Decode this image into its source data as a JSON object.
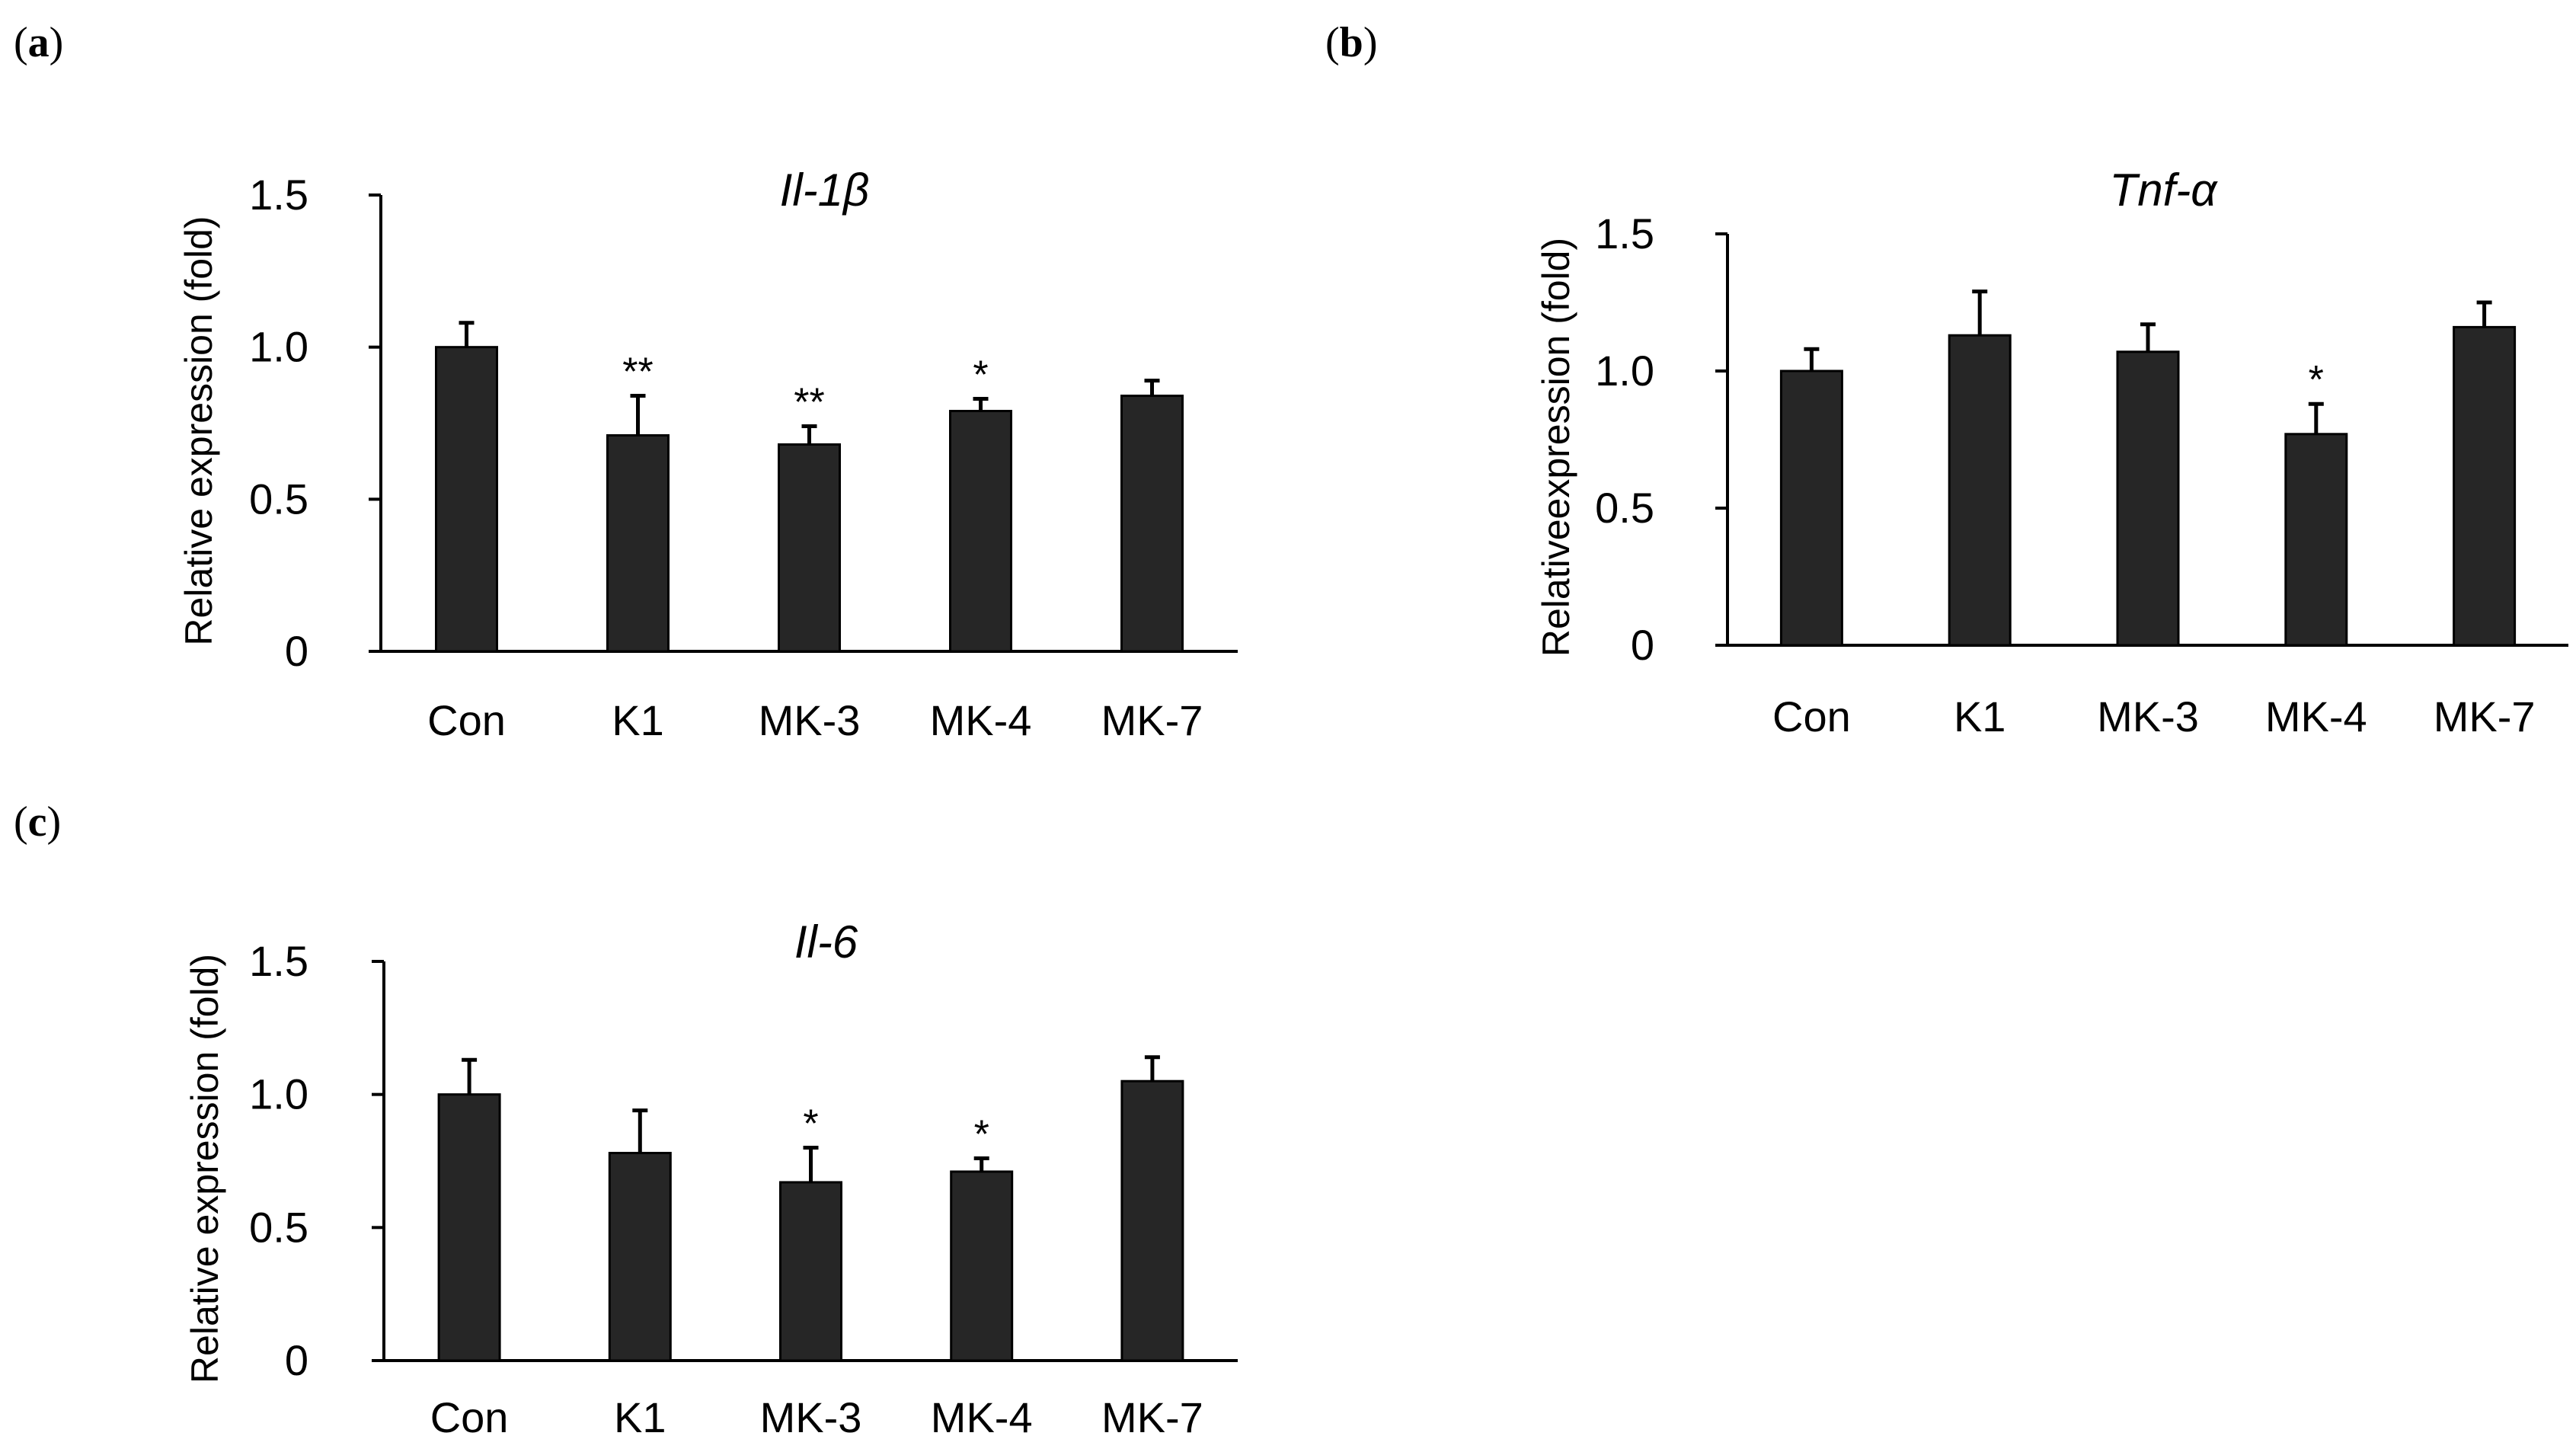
{
  "chart_data": [
    {
      "panel": "a",
      "type": "bar",
      "title": "Il-1β",
      "ylabel": "Relative expression (fold)",
      "xlabel": "",
      "ylim": [
        0,
        1.5
      ],
      "yticks": [
        "0",
        "0.5",
        "1.0",
        "1.5"
      ],
      "ytick_values": [
        0,
        0.5,
        1.0,
        1.5
      ],
      "categories": [
        "Con",
        "K1",
        "MK-3",
        "MK-4",
        "MK-7"
      ],
      "values": [
        1.0,
        0.71,
        0.68,
        0.79,
        0.84
      ],
      "errors": [
        0.08,
        0.13,
        0.06,
        0.04,
        0.05
      ],
      "significance": [
        "",
        "**",
        "**",
        "*",
        ""
      ]
    },
    {
      "panel": "b",
      "type": "bar",
      "title": "Tnf-α",
      "ylabel": "Relativeexpression (fold)",
      "xlabel": "",
      "ylim": [
        0,
        1.5
      ],
      "yticks": [
        "0",
        "0.5",
        "1.0",
        "1.5"
      ],
      "ytick_values": [
        0,
        0.5,
        1.0,
        1.5
      ],
      "categories": [
        "Con",
        "K1",
        "MK-3",
        "MK-4",
        "MK-7"
      ],
      "values": [
        1.0,
        1.13,
        1.07,
        0.77,
        1.16
      ],
      "errors": [
        0.08,
        0.16,
        0.1,
        0.11,
        0.09
      ],
      "significance": [
        "",
        "",
        "",
        "*",
        ""
      ]
    },
    {
      "panel": "c",
      "type": "bar",
      "title": "Il-6",
      "ylabel": "Relative expression (fold)",
      "xlabel": "",
      "ylim": [
        0,
        1.5
      ],
      "yticks": [
        "0",
        "0.5",
        "1.0",
        "1.5"
      ],
      "ytick_values": [
        0,
        0.5,
        1.0,
        1.5
      ],
      "categories": [
        "Con",
        "K1",
        "MK-3",
        "MK-4",
        "MK-7"
      ],
      "values": [
        1.0,
        0.78,
        0.67,
        0.71,
        1.05
      ],
      "errors": [
        0.13,
        0.16,
        0.13,
        0.05,
        0.09
      ],
      "significance": [
        "",
        "",
        "*",
        "*",
        ""
      ]
    }
  ]
}
